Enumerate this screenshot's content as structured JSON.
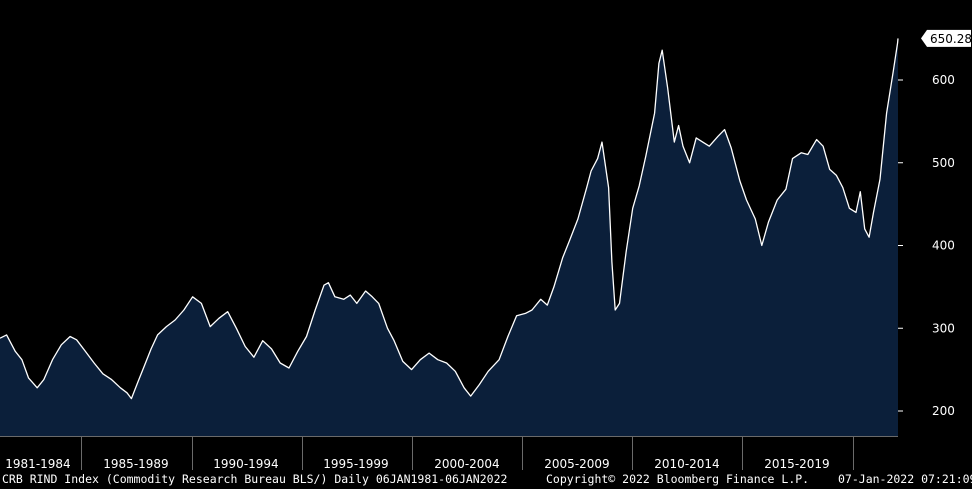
{
  "chart_data": {
    "type": "area",
    "ylim": [
      170,
      660
    ],
    "y_ticks": [
      200,
      300,
      400,
      500,
      600
    ],
    "y_tick_labels": [
      "200",
      "300",
      "400",
      "500",
      "600"
    ],
    "x_tick_labels": [
      "1981-1984",
      "1985-1989",
      "1990-1994",
      "1995-1999",
      "2000-2004",
      "2005-2009",
      "2010-2014",
      "2015-2019"
    ],
    "last_value_label": "650.28",
    "last_value": 650.28,
    "grid": false,
    "fill_color": "#0b1f3a",
    "line_color": "#ffffff",
    "points": [
      [
        1981.0,
        288
      ],
      [
        1981.3,
        292
      ],
      [
        1981.7,
        272
      ],
      [
        1982.0,
        262
      ],
      [
        1982.3,
        240
      ],
      [
        1982.7,
        228
      ],
      [
        1983.0,
        238
      ],
      [
        1983.4,
        262
      ],
      [
        1983.8,
        280
      ],
      [
        1984.2,
        290
      ],
      [
        1984.5,
        286
      ],
      [
        1984.9,
        272
      ],
      [
        1985.3,
        258
      ],
      [
        1985.7,
        245
      ],
      [
        1986.1,
        238
      ],
      [
        1986.5,
        228
      ],
      [
        1986.8,
        222
      ],
      [
        1987.0,
        215
      ],
      [
        1987.3,
        235
      ],
      [
        1987.6,
        255
      ],
      [
        1987.9,
        275
      ],
      [
        1988.2,
        292
      ],
      [
        1988.6,
        302
      ],
      [
        1989.0,
        310
      ],
      [
        1989.4,
        322
      ],
      [
        1989.8,
        338
      ],
      [
        1990.2,
        330
      ],
      [
        1990.6,
        302
      ],
      [
        1991.0,
        312
      ],
      [
        1991.4,
        320
      ],
      [
        1991.8,
        300
      ],
      [
        1992.2,
        278
      ],
      [
        1992.6,
        265
      ],
      [
        1993.0,
        285
      ],
      [
        1993.4,
        275
      ],
      [
        1993.8,
        258
      ],
      [
        1994.2,
        252
      ],
      [
        1994.6,
        272
      ],
      [
        1995.0,
        290
      ],
      [
        1995.4,
        322
      ],
      [
        1995.8,
        352
      ],
      [
        1996.0,
        355
      ],
      [
        1996.3,
        338
      ],
      [
        1996.7,
        335
      ],
      [
        1997.0,
        340
      ],
      [
        1997.3,
        330
      ],
      [
        1997.7,
        345
      ],
      [
        1998.0,
        338
      ],
      [
        1998.3,
        330
      ],
      [
        1998.7,
        300
      ],
      [
        1999.0,
        285
      ],
      [
        1999.4,
        260
      ],
      [
        1999.8,
        250
      ],
      [
        2000.2,
        262
      ],
      [
        2000.6,
        270
      ],
      [
        2001.0,
        262
      ],
      [
        2001.4,
        258
      ],
      [
        2001.8,
        248
      ],
      [
        2002.2,
        228
      ],
      [
        2002.5,
        218
      ],
      [
        2002.9,
        232
      ],
      [
        2003.3,
        248
      ],
      [
        2003.8,
        262
      ],
      [
        2004.2,
        290
      ],
      [
        2004.6,
        315
      ],
      [
        2005.0,
        318
      ],
      [
        2005.3,
        322
      ],
      [
        2005.7,
        335
      ],
      [
        2006.0,
        328
      ],
      [
        2006.3,
        350
      ],
      [
        2006.7,
        385
      ],
      [
        2007.0,
        405
      ],
      [
        2007.4,
        432
      ],
      [
        2007.8,
        470
      ],
      [
        2008.0,
        490
      ],
      [
        2008.3,
        505
      ],
      [
        2008.5,
        525
      ],
      [
        2008.8,
        470
      ],
      [
        2008.95,
        380
      ],
      [
        2009.1,
        322
      ],
      [
        2009.3,
        330
      ],
      [
        2009.6,
        392
      ],
      [
        2009.9,
        445
      ],
      [
        2010.2,
        472
      ],
      [
        2010.5,
        508
      ],
      [
        2010.9,
        560
      ],
      [
        2011.1,
        620
      ],
      [
        2011.25,
        636
      ],
      [
        2011.5,
        590
      ],
      [
        2011.8,
        525
      ],
      [
        2012.0,
        545
      ],
      [
        2012.2,
        520
      ],
      [
        2012.5,
        500
      ],
      [
        2012.8,
        530
      ],
      [
        2013.1,
        525
      ],
      [
        2013.4,
        520
      ],
      [
        2013.8,
        532
      ],
      [
        2014.1,
        540
      ],
      [
        2014.4,
        518
      ],
      [
        2014.8,
        478
      ],
      [
        2015.1,
        455
      ],
      [
        2015.5,
        432
      ],
      [
        2015.8,
        400
      ],
      [
        2016.1,
        428
      ],
      [
        2016.5,
        455
      ],
      [
        2016.9,
        468
      ],
      [
        2017.2,
        505
      ],
      [
        2017.6,
        512
      ],
      [
        2017.9,
        510
      ],
      [
        2018.3,
        528
      ],
      [
        2018.6,
        520
      ],
      [
        2018.9,
        492
      ],
      [
        2019.2,
        485
      ],
      [
        2019.5,
        470
      ],
      [
        2019.8,
        445
      ],
      [
        2020.1,
        440
      ],
      [
        2020.3,
        465
      ],
      [
        2020.5,
        420
      ],
      [
        2020.7,
        410
      ],
      [
        2020.9,
        440
      ],
      [
        2021.2,
        480
      ],
      [
        2021.5,
        560
      ],
      [
        2021.8,
        610
      ],
      [
        2022.0,
        645
      ],
      [
        2022.02,
        650.28
      ]
    ]
  },
  "footer": {
    "source": "CRB RIND Index (Commodity Research Bureau BLS/)  Daily 06JAN1981-06JAN2022",
    "copyright": "Copyright© 2022 Bloomberg Finance L.P.",
    "timestamp": "07-Jan-2022 07:21:09"
  }
}
